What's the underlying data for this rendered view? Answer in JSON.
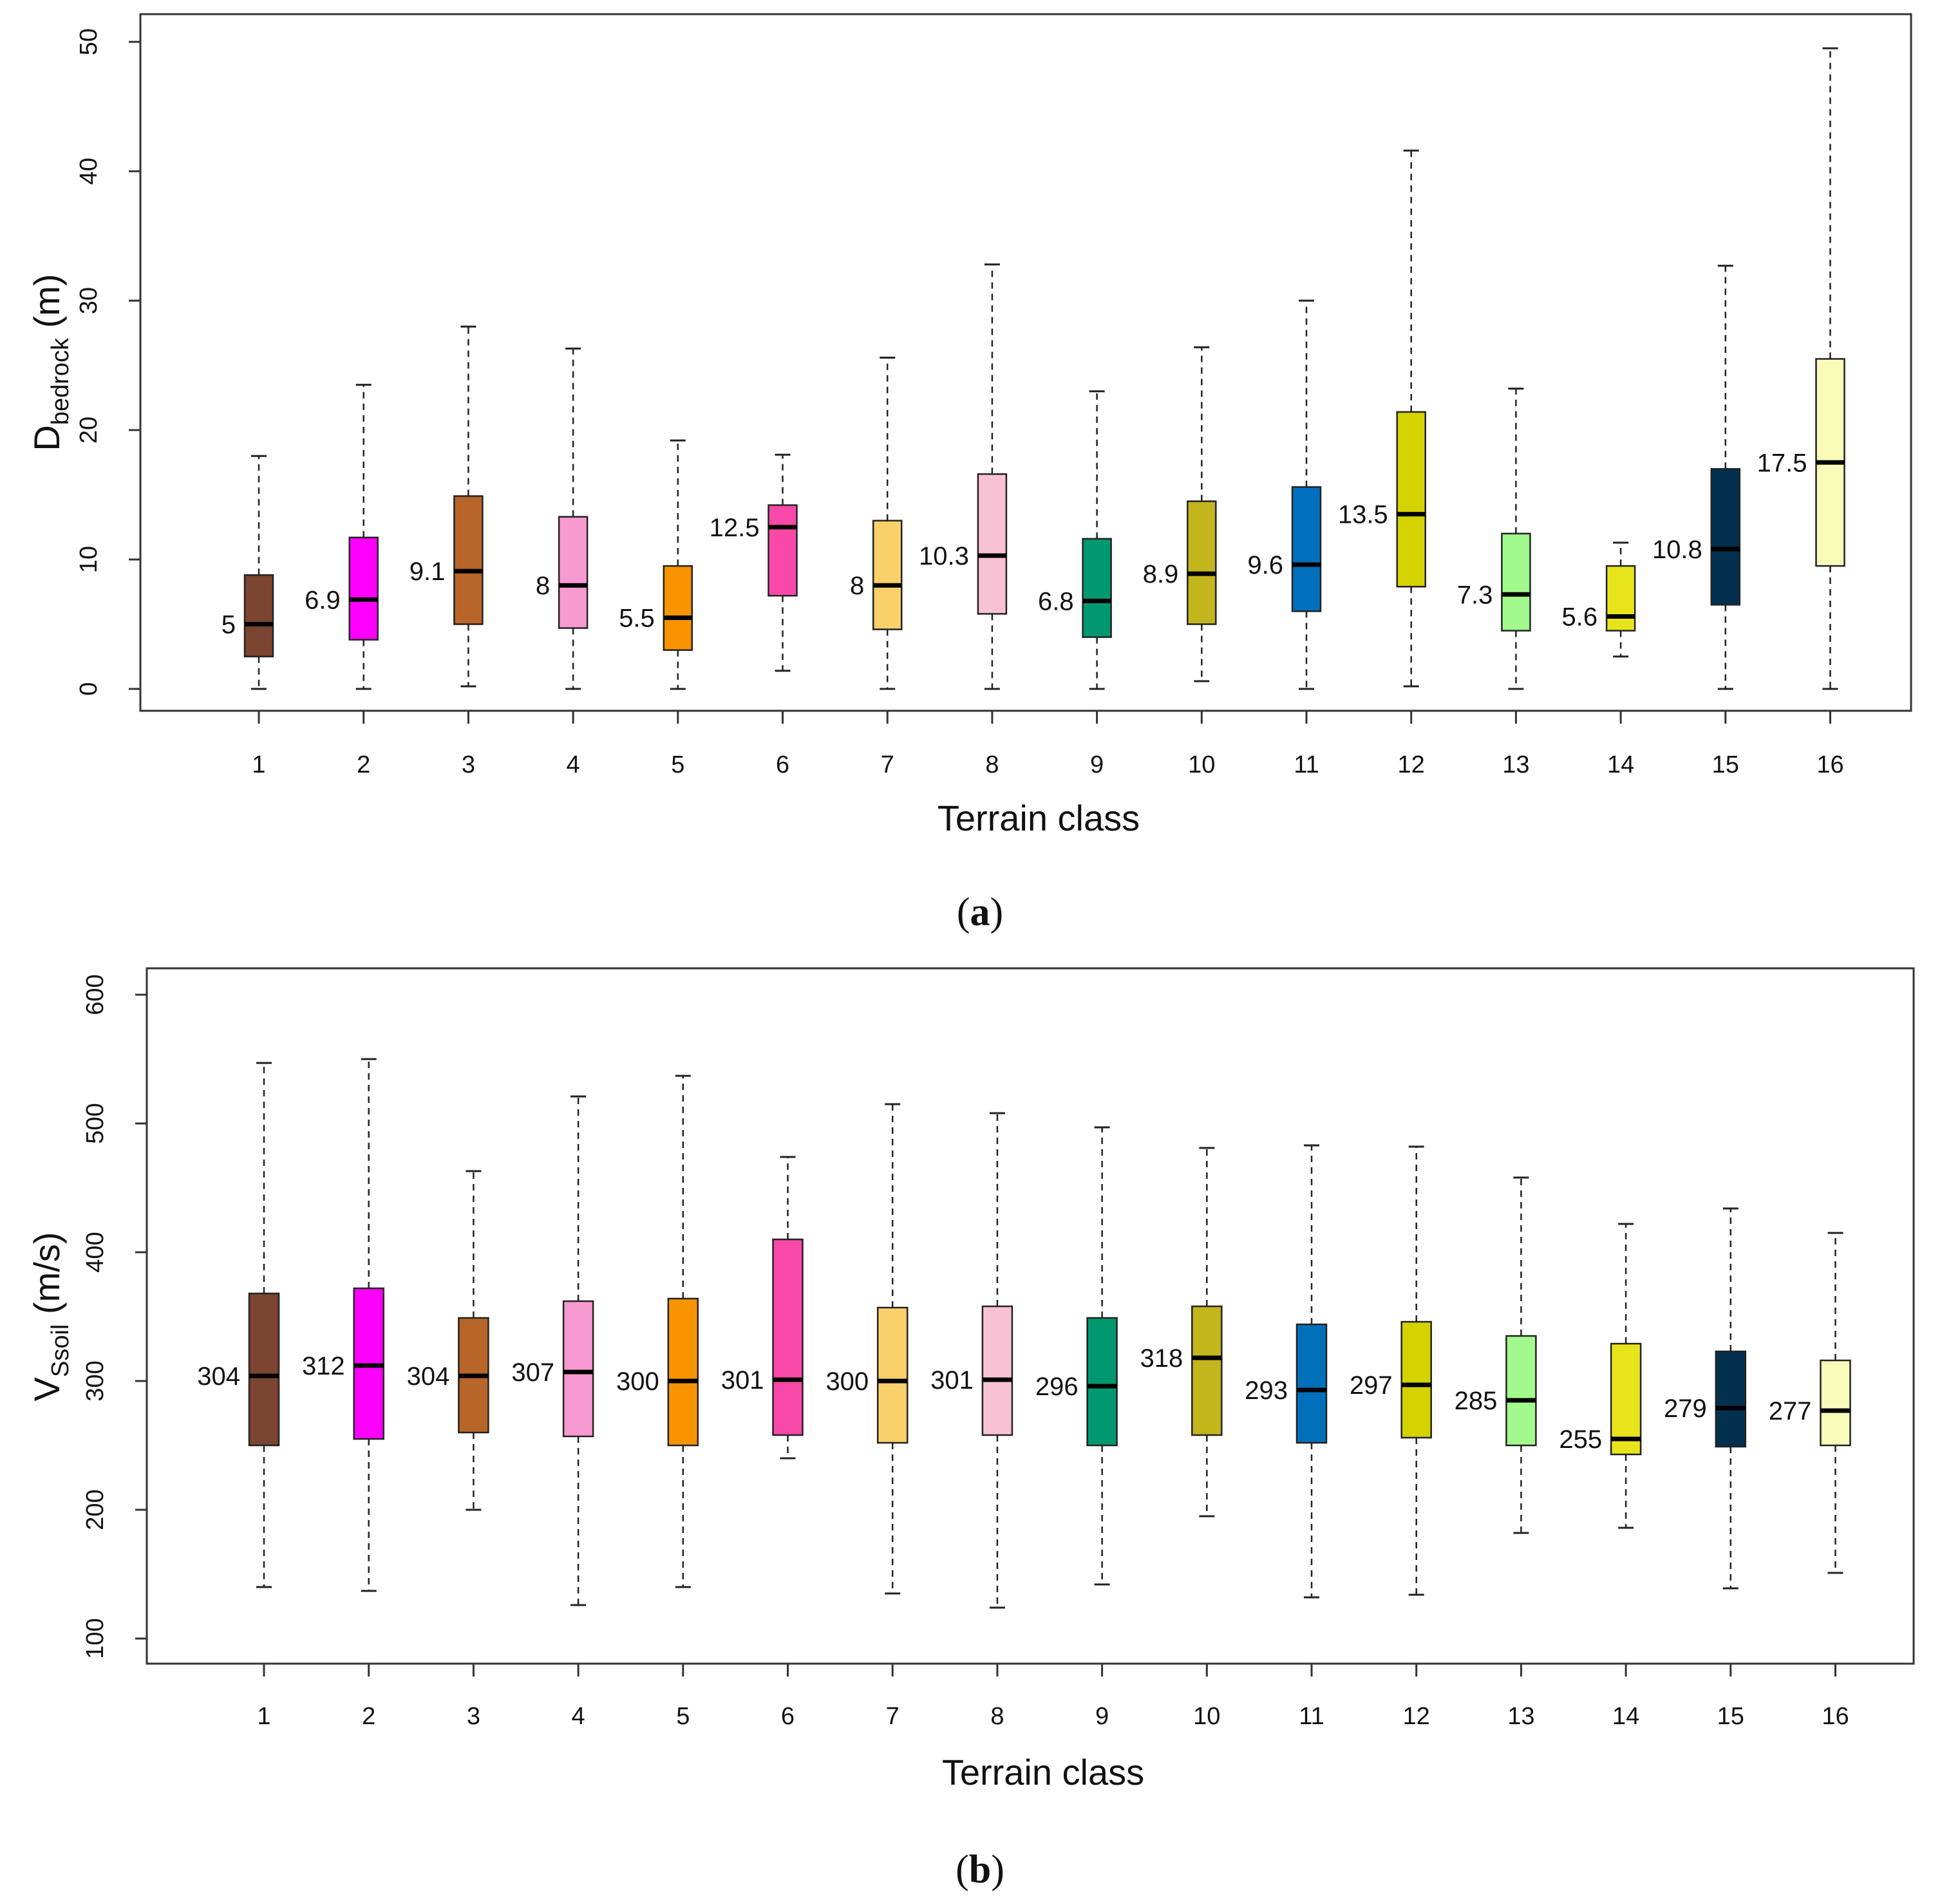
{
  "colors": [
    "#7b4532",
    "#ff00ff",
    "#b8652a",
    "#f89ad2",
    "#f79400",
    "#f848a8",
    "#fad06b",
    "#f8c2d4",
    "#019870",
    "#c3b51c",
    "#0070bc",
    "#d4d200",
    "#a2fa8c",
    "#e8e41c",
    "#03304f",
    "#f8fcb8"
  ],
  "chart_data": [
    {
      "id": "a",
      "type": "box",
      "panel_label": "a",
      "ylabel_main": "D",
      "ylabel_sub": "bedrock",
      "ylabel_unit": " (m)",
      "xlabel": "Terrain class",
      "ylim": [
        -2,
        52
      ],
      "yticks": [
        0,
        10,
        20,
        30,
        40,
        50
      ],
      "categories": [
        "1",
        "2",
        "3",
        "4",
        "5",
        "6",
        "7",
        "8",
        "9",
        "10",
        "11",
        "12",
        "13",
        "14",
        "15",
        "16"
      ],
      "whisker_low": [
        0,
        0,
        0.2,
        0,
        0,
        1.4,
        0,
        0,
        0,
        0.6,
        0,
        0.2,
        0,
        2.5,
        0,
        0
      ],
      "q1": [
        2.5,
        3.8,
        5,
        4.7,
        3,
        7.2,
        4.6,
        5.8,
        4,
        5,
        6,
        7.9,
        4.5,
        4.5,
        6.5,
        9.5
      ],
      "median": [
        5,
        6.9,
        9.1,
        8,
        5.5,
        12.5,
        8,
        10.3,
        6.8,
        8.9,
        9.6,
        13.5,
        7.3,
        5.6,
        10.8,
        17.5
      ],
      "q3": [
        8.8,
        11.7,
        14.9,
        13.3,
        9.5,
        14.2,
        13,
        16.6,
        11.6,
        14.5,
        15.6,
        21.4,
        12,
        9.5,
        17,
        25.5
      ],
      "whisker_high": [
        18,
        23.5,
        28,
        26.3,
        19.2,
        18.1,
        25.6,
        32.8,
        23,
        26.4,
        30,
        41.6,
        23.2,
        11.3,
        32.7,
        49.5
      ],
      "median_labels": [
        "5",
        "6.9",
        "9.1",
        "8",
        "5.5",
        "12.5",
        "8",
        "10.3",
        "6.8",
        "8.9",
        "9.6",
        "13.5",
        "7.3",
        "5.6",
        "10.8",
        "17.5"
      ]
    },
    {
      "id": "b",
      "type": "box",
      "panel_label": "b",
      "ylabel_main": "V",
      "ylabel_sub": "Ssoil",
      "ylabel_unit": " (m/s)",
      "xlabel": "Terrain class",
      "ylim": [
        80,
        620
      ],
      "yticks": [
        100,
        200,
        300,
        400,
        500,
        600
      ],
      "categories": [
        "1",
        "2",
        "3",
        "4",
        "5",
        "6",
        "7",
        "8",
        "9",
        "10",
        "11",
        "12",
        "13",
        "14",
        "15",
        "16"
      ],
      "whisker_low": [
        140,
        137,
        200,
        126,
        140,
        240,
        135,
        124,
        142,
        195,
        132,
        134,
        182,
        186,
        139,
        151
      ],
      "q1": [
        250,
        255,
        260,
        257,
        250,
        258,
        252,
        258,
        250,
        258,
        252,
        256,
        250,
        243,
        249,
        250
      ],
      "median": [
        304,
        312,
        304,
        307,
        300,
        301,
        300,
        301,
        296,
        318,
        293,
        297,
        285,
        255,
        279,
        277
      ],
      "q3": [
        368,
        372,
        349,
        362,
        364,
        410,
        357,
        358,
        349,
        358,
        344,
        346,
        335,
        329,
        323,
        316
      ],
      "whisker_high": [
        547,
        550,
        463,
        521,
        537,
        474,
        515,
        508,
        497,
        481,
        483,
        482,
        458,
        422,
        434,
        415
      ],
      "median_labels": [
        "304",
        "312",
        "304",
        "307",
        "300",
        "301",
        "300",
        "301",
        "296",
        "318",
        "293",
        "297",
        "285",
        "255",
        "279",
        "277"
      ]
    }
  ]
}
